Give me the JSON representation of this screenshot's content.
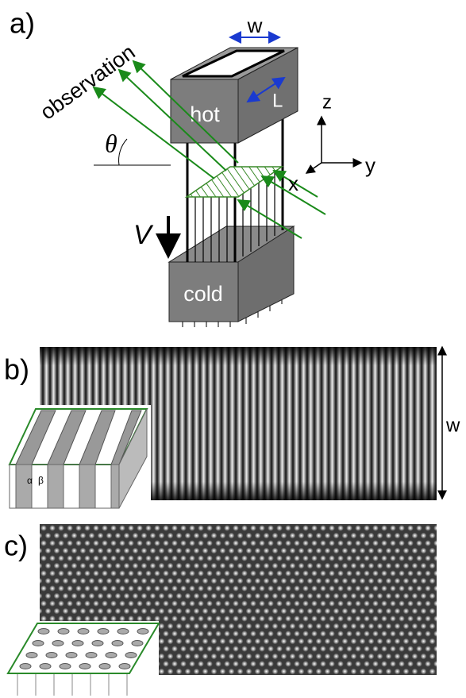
{
  "panel_a": {
    "label": "a)",
    "observation": "observation",
    "width": "w",
    "length": "L",
    "hot": "hot",
    "cold": "cold",
    "theta": "θ",
    "velocity": "V",
    "axes": {
      "z": "z",
      "y": "y",
      "x": "x"
    }
  },
  "panel_b": {
    "label": "b)",
    "width": "w",
    "phases": {
      "alpha": "α",
      "beta": "β"
    }
  },
  "panel_c": {
    "label": "c)"
  }
}
